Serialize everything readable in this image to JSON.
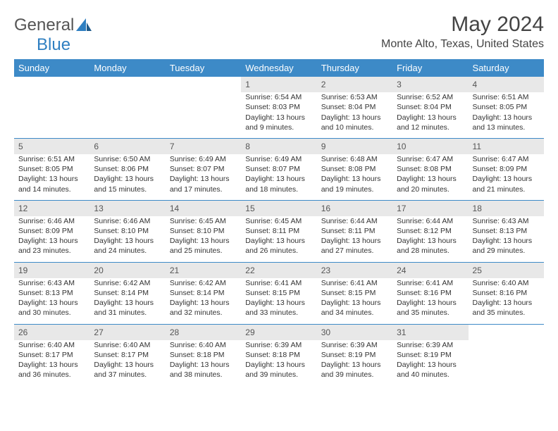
{
  "logo": {
    "part1": "General",
    "part2": "Blue"
  },
  "header": {
    "title": "May 2024",
    "location": "Monte Alto, Texas, United States"
  },
  "colors": {
    "header_bg": "#3d8ac7",
    "daynum_bg": "#e8e8e8",
    "rule": "#3d8ac7"
  },
  "weekdays": [
    "Sunday",
    "Monday",
    "Tuesday",
    "Wednesday",
    "Thursday",
    "Friday",
    "Saturday"
  ],
  "weeks": [
    {
      "days": [
        null,
        null,
        null,
        {
          "num": "1",
          "sunrise": "Sunrise: 6:54 AM",
          "sunset": "Sunset: 8:03 PM",
          "daylight": "Daylight: 13 hours and 9 minutes."
        },
        {
          "num": "2",
          "sunrise": "Sunrise: 6:53 AM",
          "sunset": "Sunset: 8:04 PM",
          "daylight": "Daylight: 13 hours and 10 minutes."
        },
        {
          "num": "3",
          "sunrise": "Sunrise: 6:52 AM",
          "sunset": "Sunset: 8:04 PM",
          "daylight": "Daylight: 13 hours and 12 minutes."
        },
        {
          "num": "4",
          "sunrise": "Sunrise: 6:51 AM",
          "sunset": "Sunset: 8:05 PM",
          "daylight": "Daylight: 13 hours and 13 minutes."
        }
      ]
    },
    {
      "days": [
        {
          "num": "5",
          "sunrise": "Sunrise: 6:51 AM",
          "sunset": "Sunset: 8:05 PM",
          "daylight": "Daylight: 13 hours and 14 minutes."
        },
        {
          "num": "6",
          "sunrise": "Sunrise: 6:50 AM",
          "sunset": "Sunset: 8:06 PM",
          "daylight": "Daylight: 13 hours and 15 minutes."
        },
        {
          "num": "7",
          "sunrise": "Sunrise: 6:49 AM",
          "sunset": "Sunset: 8:07 PM",
          "daylight": "Daylight: 13 hours and 17 minutes."
        },
        {
          "num": "8",
          "sunrise": "Sunrise: 6:49 AM",
          "sunset": "Sunset: 8:07 PM",
          "daylight": "Daylight: 13 hours and 18 minutes."
        },
        {
          "num": "9",
          "sunrise": "Sunrise: 6:48 AM",
          "sunset": "Sunset: 8:08 PM",
          "daylight": "Daylight: 13 hours and 19 minutes."
        },
        {
          "num": "10",
          "sunrise": "Sunrise: 6:47 AM",
          "sunset": "Sunset: 8:08 PM",
          "daylight": "Daylight: 13 hours and 20 minutes."
        },
        {
          "num": "11",
          "sunrise": "Sunrise: 6:47 AM",
          "sunset": "Sunset: 8:09 PM",
          "daylight": "Daylight: 13 hours and 21 minutes."
        }
      ]
    },
    {
      "days": [
        {
          "num": "12",
          "sunrise": "Sunrise: 6:46 AM",
          "sunset": "Sunset: 8:09 PM",
          "daylight": "Daylight: 13 hours and 23 minutes."
        },
        {
          "num": "13",
          "sunrise": "Sunrise: 6:46 AM",
          "sunset": "Sunset: 8:10 PM",
          "daylight": "Daylight: 13 hours and 24 minutes."
        },
        {
          "num": "14",
          "sunrise": "Sunrise: 6:45 AM",
          "sunset": "Sunset: 8:10 PM",
          "daylight": "Daylight: 13 hours and 25 minutes."
        },
        {
          "num": "15",
          "sunrise": "Sunrise: 6:45 AM",
          "sunset": "Sunset: 8:11 PM",
          "daylight": "Daylight: 13 hours and 26 minutes."
        },
        {
          "num": "16",
          "sunrise": "Sunrise: 6:44 AM",
          "sunset": "Sunset: 8:11 PM",
          "daylight": "Daylight: 13 hours and 27 minutes."
        },
        {
          "num": "17",
          "sunrise": "Sunrise: 6:44 AM",
          "sunset": "Sunset: 8:12 PM",
          "daylight": "Daylight: 13 hours and 28 minutes."
        },
        {
          "num": "18",
          "sunrise": "Sunrise: 6:43 AM",
          "sunset": "Sunset: 8:13 PM",
          "daylight": "Daylight: 13 hours and 29 minutes."
        }
      ]
    },
    {
      "days": [
        {
          "num": "19",
          "sunrise": "Sunrise: 6:43 AM",
          "sunset": "Sunset: 8:13 PM",
          "daylight": "Daylight: 13 hours and 30 minutes."
        },
        {
          "num": "20",
          "sunrise": "Sunrise: 6:42 AM",
          "sunset": "Sunset: 8:14 PM",
          "daylight": "Daylight: 13 hours and 31 minutes."
        },
        {
          "num": "21",
          "sunrise": "Sunrise: 6:42 AM",
          "sunset": "Sunset: 8:14 PM",
          "daylight": "Daylight: 13 hours and 32 minutes."
        },
        {
          "num": "22",
          "sunrise": "Sunrise: 6:41 AM",
          "sunset": "Sunset: 8:15 PM",
          "daylight": "Daylight: 13 hours and 33 minutes."
        },
        {
          "num": "23",
          "sunrise": "Sunrise: 6:41 AM",
          "sunset": "Sunset: 8:15 PM",
          "daylight": "Daylight: 13 hours and 34 minutes."
        },
        {
          "num": "24",
          "sunrise": "Sunrise: 6:41 AM",
          "sunset": "Sunset: 8:16 PM",
          "daylight": "Daylight: 13 hours and 35 minutes."
        },
        {
          "num": "25",
          "sunrise": "Sunrise: 6:40 AM",
          "sunset": "Sunset: 8:16 PM",
          "daylight": "Daylight: 13 hours and 35 minutes."
        }
      ]
    },
    {
      "days": [
        {
          "num": "26",
          "sunrise": "Sunrise: 6:40 AM",
          "sunset": "Sunset: 8:17 PM",
          "daylight": "Daylight: 13 hours and 36 minutes."
        },
        {
          "num": "27",
          "sunrise": "Sunrise: 6:40 AM",
          "sunset": "Sunset: 8:17 PM",
          "daylight": "Daylight: 13 hours and 37 minutes."
        },
        {
          "num": "28",
          "sunrise": "Sunrise: 6:40 AM",
          "sunset": "Sunset: 8:18 PM",
          "daylight": "Daylight: 13 hours and 38 minutes."
        },
        {
          "num": "29",
          "sunrise": "Sunrise: 6:39 AM",
          "sunset": "Sunset: 8:18 PM",
          "daylight": "Daylight: 13 hours and 39 minutes."
        },
        {
          "num": "30",
          "sunrise": "Sunrise: 6:39 AM",
          "sunset": "Sunset: 8:19 PM",
          "daylight": "Daylight: 13 hours and 39 minutes."
        },
        {
          "num": "31",
          "sunrise": "Sunrise: 6:39 AM",
          "sunset": "Sunset: 8:19 PM",
          "daylight": "Daylight: 13 hours and 40 minutes."
        },
        null
      ]
    }
  ]
}
